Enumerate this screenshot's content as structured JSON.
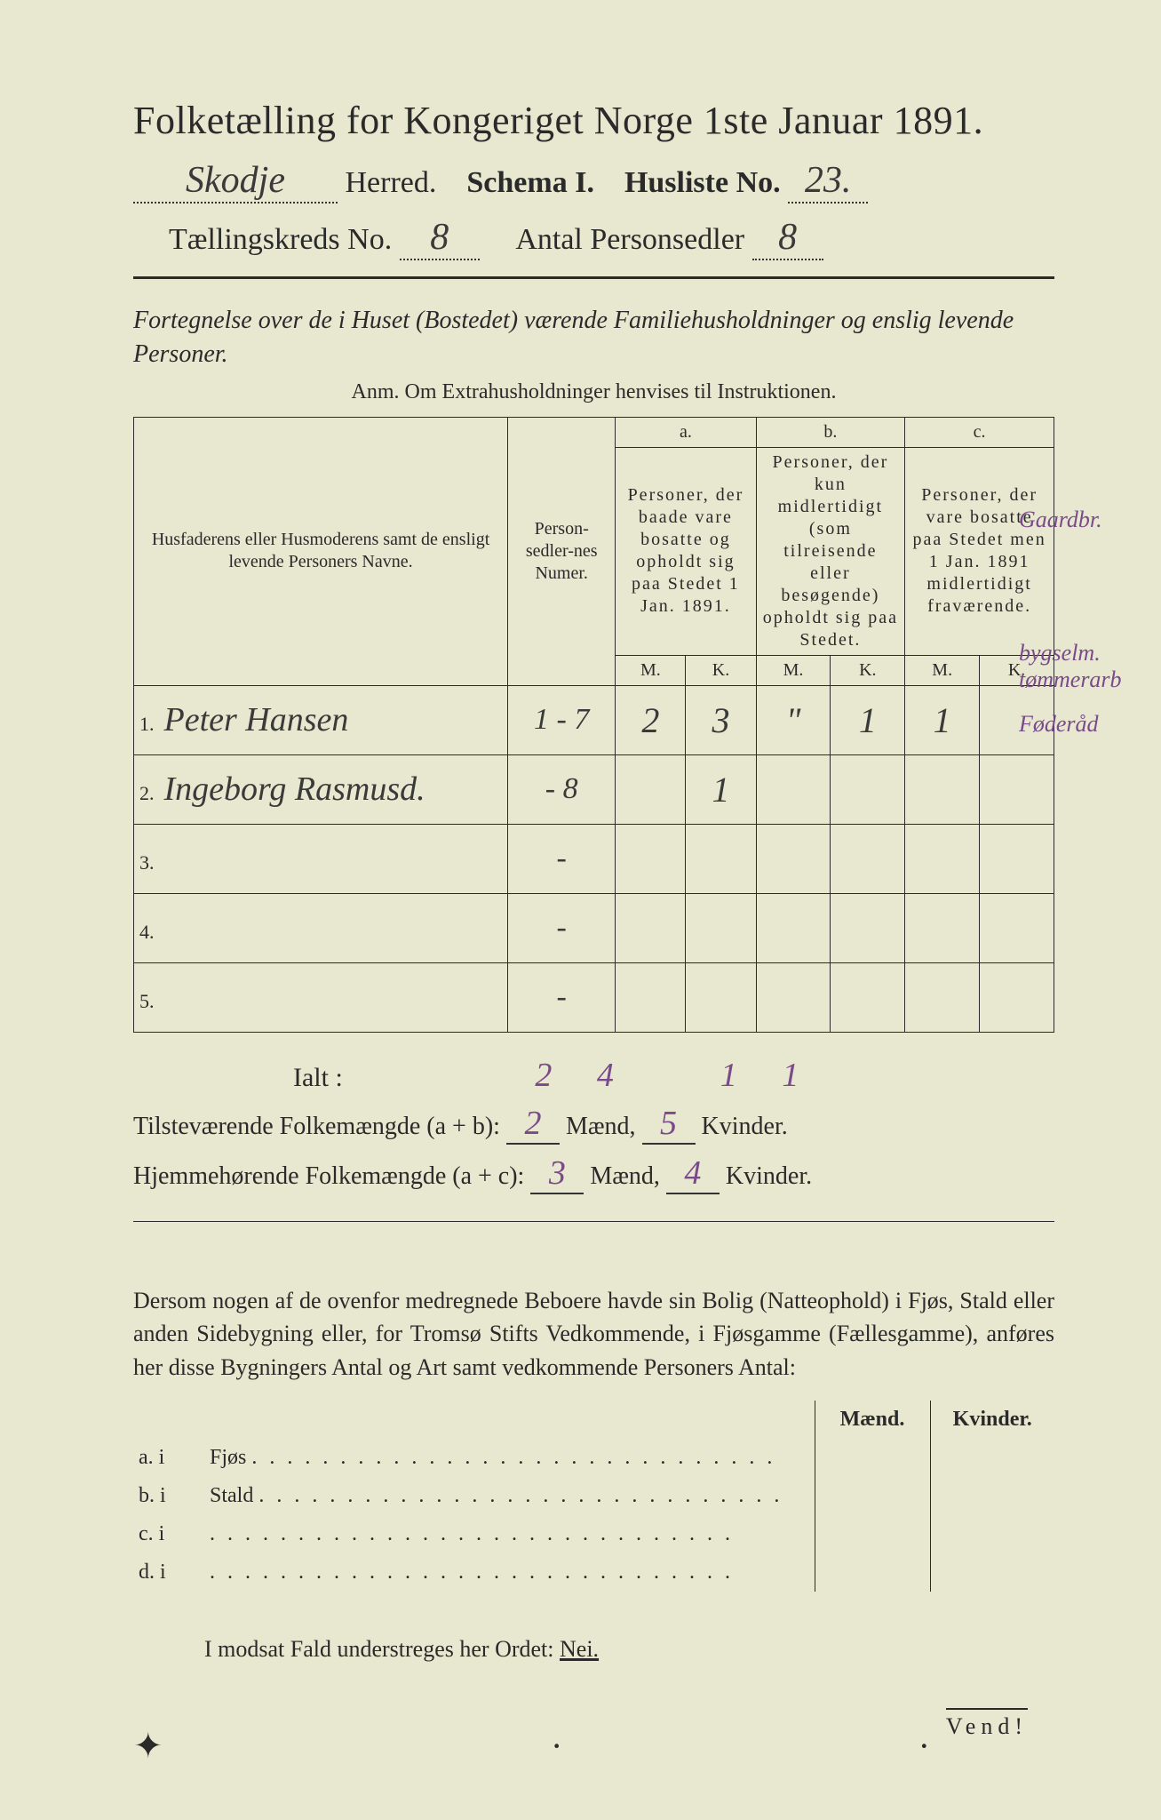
{
  "header": {
    "title": "Folketælling for Kongeriget Norge 1ste Januar 1891.",
    "herred_value": "Skodje",
    "herred_label": "Herred.",
    "schema_label": "Schema I.",
    "husliste_label": "Husliste No.",
    "husliste_value": "23.",
    "kreds_label": "Tællingskreds No.",
    "kreds_value": "8",
    "antal_label": "Antal Personsedler",
    "antal_value": "8"
  },
  "description": {
    "line": "Fortegnelse over de i Huset (Bostedet) værende Familiehusholdninger og enslig levende Personer.",
    "anm": "Anm.  Om Extrahusholdninger henvises til Instruktionen."
  },
  "table": {
    "col_name": "Husfaderens eller Husmoderens samt de ensligt levende Personers Navne.",
    "col_num": "Person-sedler-nes Numer.",
    "col_a_label": "a.",
    "col_a": "Personer, der baade vare bosatte og opholdt sig paa Stedet 1 Jan. 1891.",
    "col_b_label": "b.",
    "col_b": "Personer, der kun midlertidigt (som tilreisende eller besøgende) opholdt sig paa Stedet.",
    "col_c_label": "c.",
    "col_c": "Personer, der vare bosatte paa Stedet men 1 Jan. 1891 midlertidigt fraværende.",
    "mk_m": "M.",
    "mk_k": "K.",
    "rows": [
      {
        "n": "1.",
        "name": "Peter Hansen",
        "num": "1 - 7",
        "aM": "2",
        "aK": "3",
        "bM": "\"",
        "bK": "1",
        "cM": "1",
        "cK": ""
      },
      {
        "n": "2.",
        "name": "Ingeborg Rasmusd.",
        "num": "- 8",
        "aM": "",
        "aK": "1",
        "bM": "",
        "bK": "",
        "cM": "",
        "cK": ""
      },
      {
        "n": "3.",
        "name": "",
        "num": "-",
        "aM": "",
        "aK": "",
        "bM": "",
        "bK": "",
        "cM": "",
        "cK": ""
      },
      {
        "n": "4.",
        "name": "",
        "num": "-",
        "aM": "",
        "aK": "",
        "bM": "",
        "bK": "",
        "cM": "",
        "cK": ""
      },
      {
        "n": "5.",
        "name": "",
        "num": "-",
        "aM": "",
        "aK": "",
        "bM": "",
        "bK": "",
        "cM": "",
        "cK": ""
      }
    ],
    "margin_notes": [
      "Gaardbr.",
      "bygselm.",
      "tømmerarb",
      "Føderåd"
    ]
  },
  "totals": {
    "ialt_label": "Ialt :",
    "ialt": {
      "aM": "2",
      "aK": "4",
      "bM": "",
      "bK": "1",
      "cM": "1",
      "cK": ""
    },
    "present_label": "Tilsteværende Folkemængde (a + b):",
    "present_m": "2",
    "present_k": "5",
    "home_label": "Hjemmehørende Folkemængde (a + c):",
    "home_m": "3",
    "home_k": "4",
    "maend": "Mænd,",
    "kvinder": "Kvinder."
  },
  "paragraph": "Dersom nogen af de ovenfor medregnede Beboere havde sin Bolig (Natteophold) i Fjøs, Stald eller anden Sidebygning eller, for Tromsø Stifts Vedkommende, i Fjøsgamme (Fællesgamme), anføres her disse Bygningers Antal og Art samt vedkommende Personers Antal:",
  "side_table": {
    "head_m": "Mænd.",
    "head_k": "Kvinder.",
    "rows": [
      {
        "l": "a.  i",
        "txt": "Fjøs"
      },
      {
        "l": "b.  i",
        "txt": "Stald"
      },
      {
        "l": "c.  i",
        "txt": ""
      },
      {
        "l": "d.  i",
        "txt": ""
      }
    ]
  },
  "nei_line": {
    "prefix": "I modsat Fald understreges her Ordet:",
    "word": "Nei."
  },
  "vend": "Vend!",
  "colors": {
    "paper": "#e8e8d0",
    "ink": "#2a2a2a",
    "handwriting": "#3a3a3a",
    "purple_ink": "#7a4a8a",
    "background": "#1a1a1a"
  }
}
